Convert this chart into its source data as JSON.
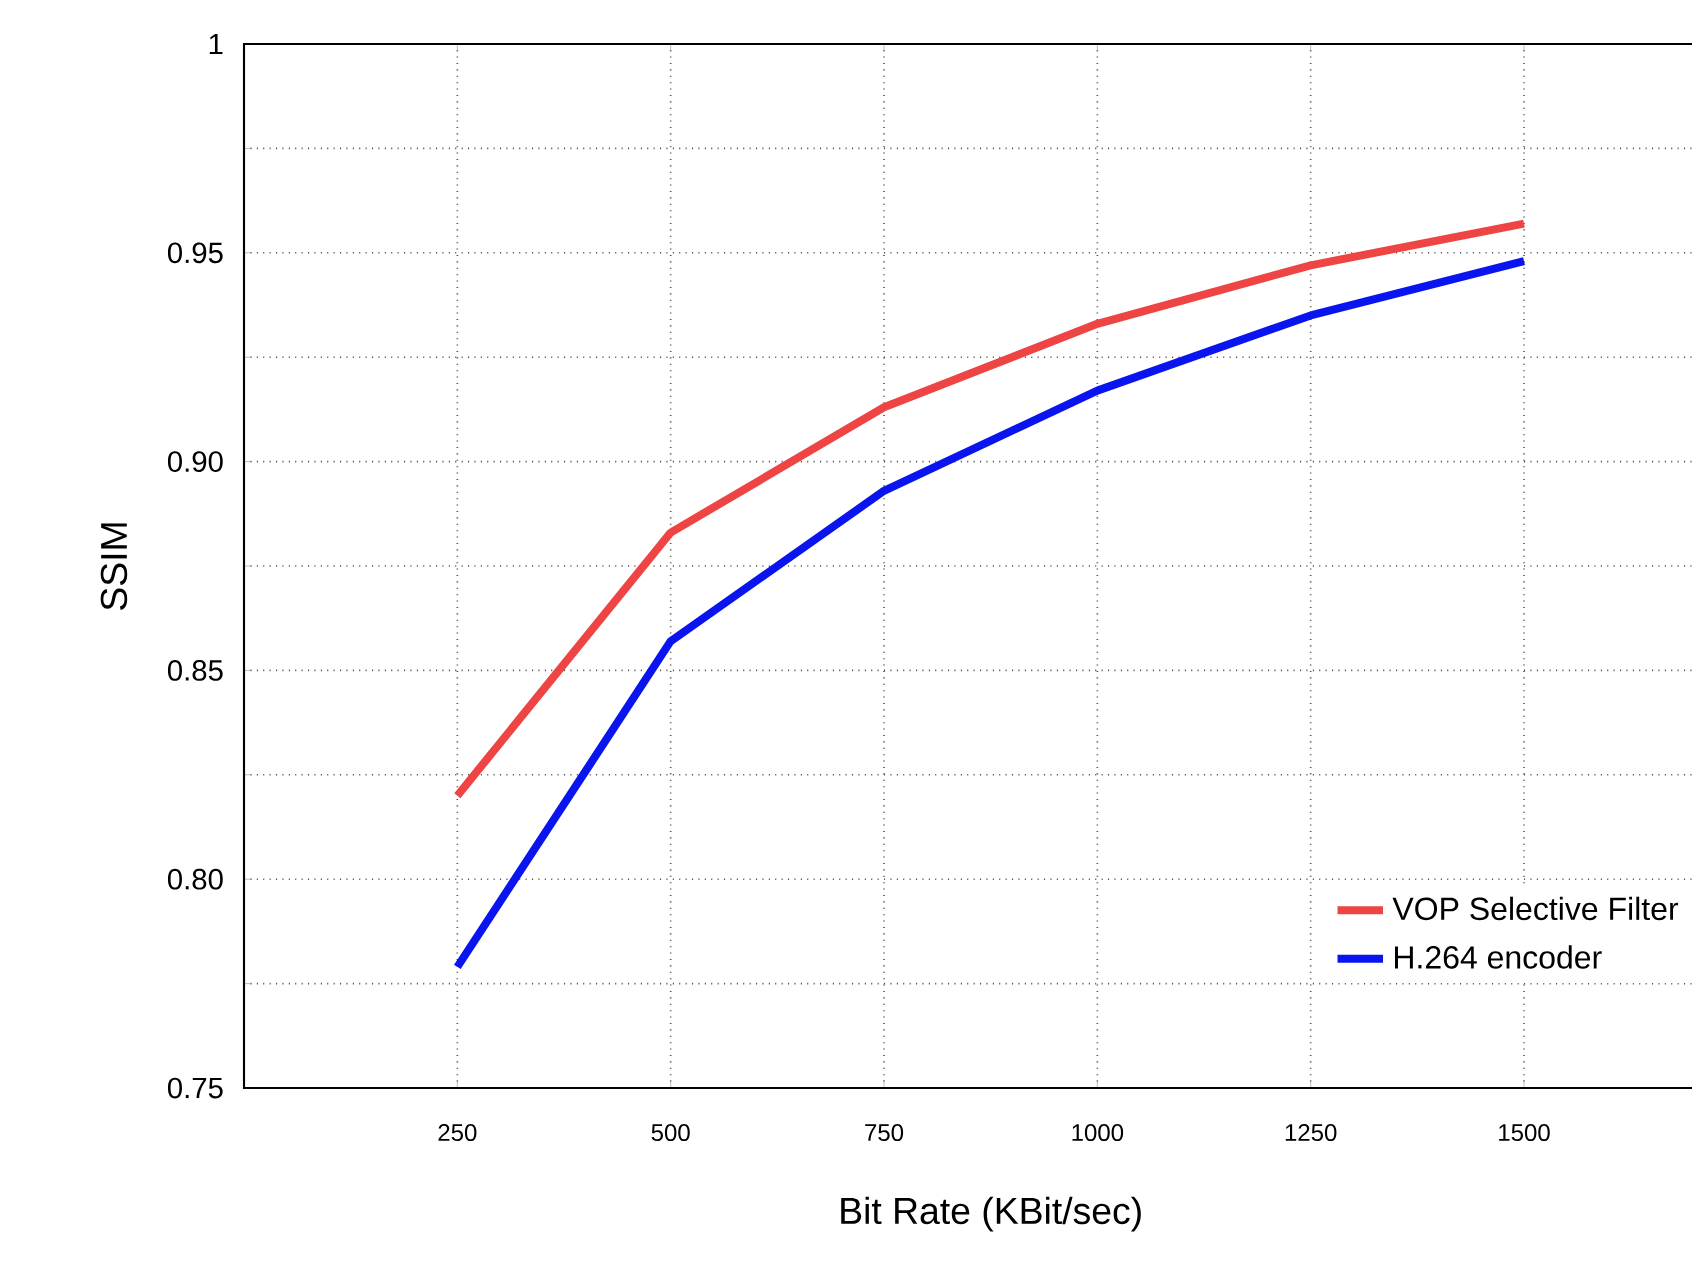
{
  "chart_data": {
    "type": "line",
    "xlabel": "Bit Rate (KBit/sec)",
    "ylabel": "SSIM",
    "x": [
      250,
      500,
      750,
      1000,
      1250,
      1500
    ],
    "series": [
      {
        "name": "VOP Selective Filter",
        "color": "#ee4444",
        "values": [
          0.82,
          0.883,
          0.913,
          0.933,
          0.947,
          0.957
        ]
      },
      {
        "name": "H.264 encoder",
        "color": "#0a14ee",
        "values": [
          0.779,
          0.857,
          0.893,
          0.917,
          0.935,
          0.948
        ]
      }
    ],
    "xlim": [
      0,
      1750
    ],
    "ylim": [
      0.75,
      1
    ],
    "xticks": [
      250,
      500,
      750,
      1000,
      1250,
      1500
    ],
    "yticks": [
      {
        "value": 0.75,
        "label": "0.75"
      },
      {
        "value": 0.775,
        "label": null
      },
      {
        "value": 0.8,
        "label": "0.80"
      },
      {
        "value": 0.825,
        "label": null
      },
      {
        "value": 0.85,
        "label": "0.85"
      },
      {
        "value": 0.875,
        "label": null
      },
      {
        "value": 0.9,
        "label": "0.90"
      },
      {
        "value": 0.925,
        "label": null
      },
      {
        "value": 0.95,
        "label": "0.95"
      },
      {
        "value": 0.975,
        "label": null
      },
      {
        "value": 1,
        "label": "1"
      }
    ],
    "grid": true,
    "legend": "bottom right",
    "marker": "none",
    "line_style": "solid"
  }
}
